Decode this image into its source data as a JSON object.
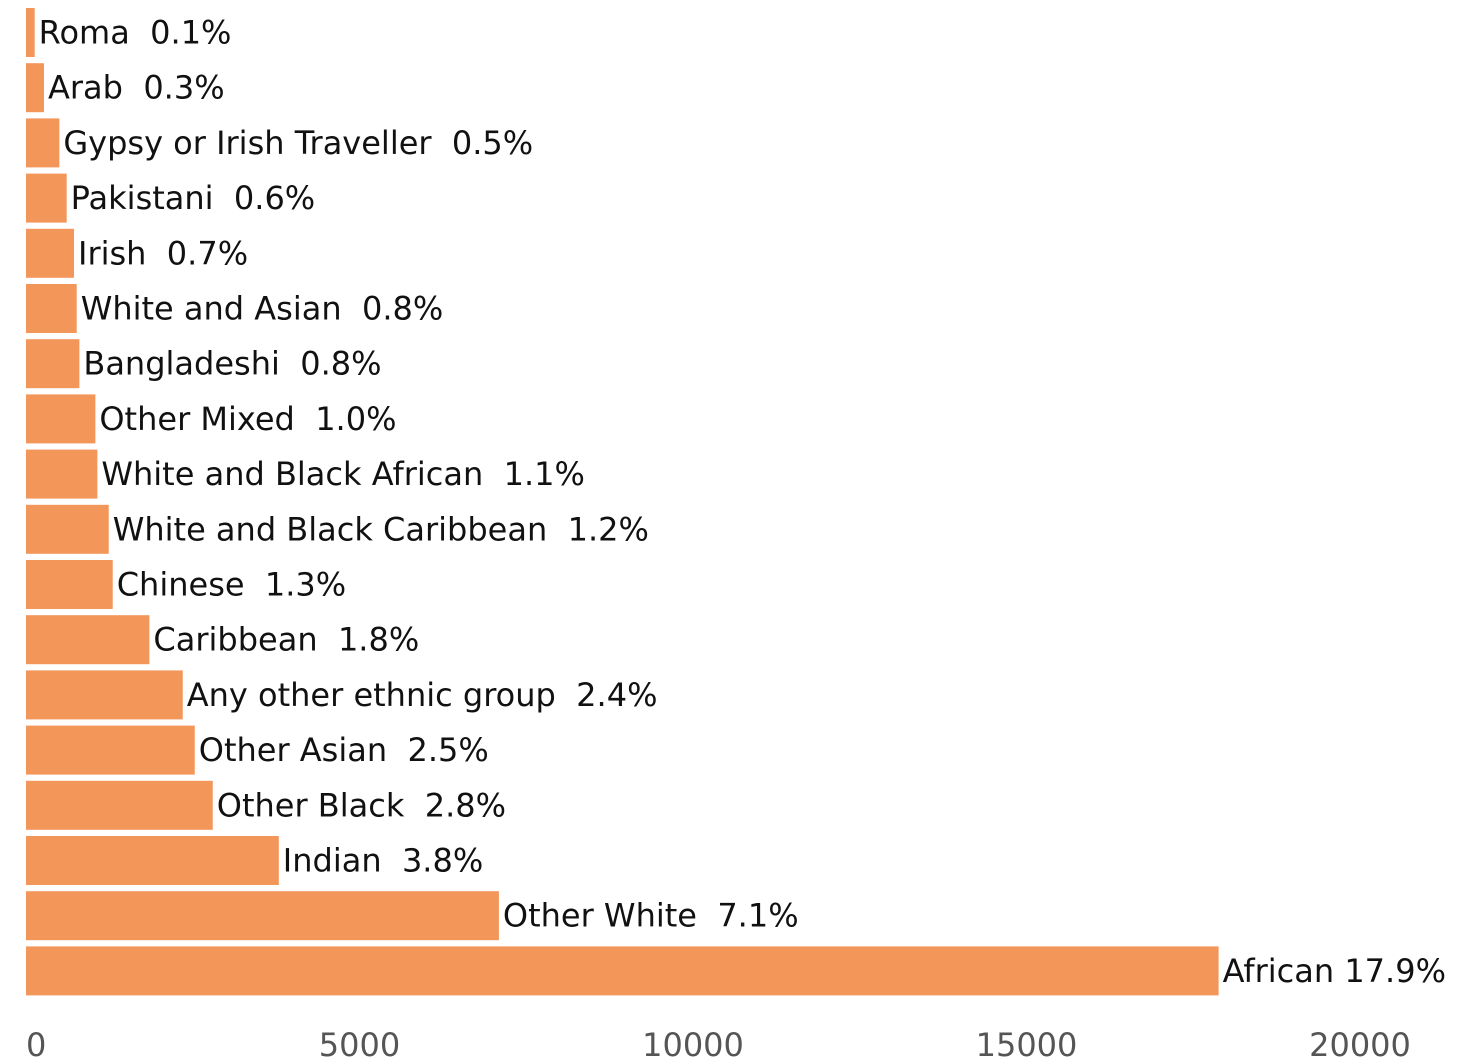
{
  "chart_data": {
    "type": "bar",
    "orientation": "horizontal",
    "bar_color": "#f2965a",
    "categories": [
      "Roma",
      "Arab",
      "Gypsy or Irish Traveller",
      "Pakistani",
      "Irish",
      "White and Asian",
      "Bangladeshi",
      "Other Mixed",
      "White and Black African",
      "White and Black Caribbean",
      "Chinese",
      "Caribbean",
      "Any other ethnic group",
      "Other Asian",
      "Other Black",
      "Indian",
      "Other White",
      "African"
    ],
    "values": [
      130,
      270,
      500,
      610,
      720,
      760,
      800,
      1040,
      1070,
      1240,
      1300,
      1850,
      2350,
      2530,
      2800,
      3790,
      7090,
      17880
    ],
    "labels": [
      "Roma  0.1%",
      "Arab  0.3%",
      "Gypsy or Irish Traveller  0.5%",
      "Pakistani  0.6%",
      "Irish  0.7%",
      "White and Asian  0.8%",
      "Bangladeshi  0.8%",
      "Other Mixed  1.0%",
      "White and Black African  1.1%",
      "White and Black Caribbean  1.2%",
      "Chinese  1.3%",
      "Caribbean  1.8%",
      "Any other ethnic group  2.4%",
      "Other Asian  2.5%",
      "Other Black  2.8%",
      "Indian  3.8%",
      "Other White  7.1%",
      "African 17.9%"
    ],
    "x_ticks": [
      "0",
      "5000",
      "10000",
      "15000",
      "20000"
    ],
    "x_tick_values": [
      0,
      5000,
      10000,
      15000,
      20000
    ],
    "xlim": [
      0,
      20000
    ],
    "grid": false,
    "legend": "none"
  }
}
